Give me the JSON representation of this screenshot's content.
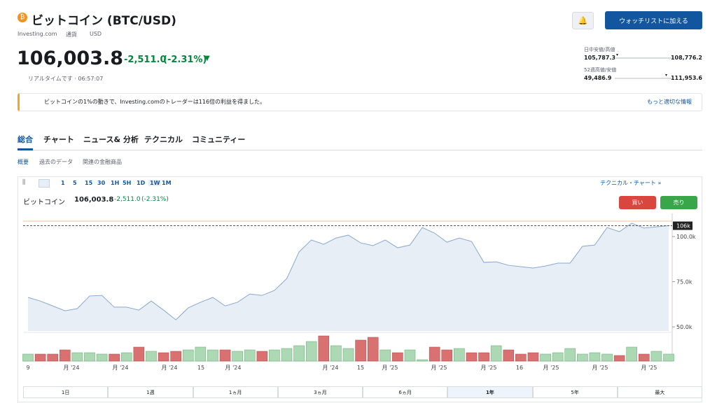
{
  "header": {
    "title": "ビットコイン (BTC/USD)",
    "source": "Investing.com",
    "currency_label": "通貨",
    "currency": "USD",
    "button": "ウォッチリストに加える"
  },
  "quote": {
    "price": "106,003.8",
    "change": "-2,511.0",
    "change_pct": "(-2.31%)",
    "status": "リアルタイムです · 06:57:07"
  },
  "ranges": [
    {
      "label": "日中安値/高値",
      "low": "105,787.3",
      "high": "108,776.2"
    },
    {
      "label": "52週高値/安値",
      "low": "49,486.9",
      "high": "111,953.6"
    }
  ],
  "banner": {
    "text": "ビットコインの1%の動きで、Investing.comのトレーダーは116倍の利益を得ました。",
    "link": "もっと適切な情報"
  },
  "tabs": [
    "総合",
    "チャート",
    "ニュース& 分析",
    "テクニカル",
    "コミュニティー"
  ],
  "subtabs": [
    "概要",
    "過去のデータ",
    "関連の金融商品"
  ],
  "chart_toolbar": {
    "intervals": [
      "1",
      "5",
      "15",
      "30",
      "1H",
      "5H",
      "1D",
      "1W",
      "1M"
    ],
    "link": "テクニカル・チャート »"
  },
  "chart_legend": {
    "name": "ビットコイン",
    "price": "106,003.8",
    "change": "-2,511.0",
    "change_pct": "(-2.31%)"
  },
  "trade_buttons": [
    "買い",
    "売り"
  ],
  "chart_data": {
    "type": "area",
    "color": "#86a9d1",
    "values": [
      66300,
      64300,
      61600,
      58900,
      60100,
      67100,
      67400,
      60900,
      60900,
      59300,
      64300,
      59300,
      53900,
      60500,
      63600,
      66300,
      61600,
      63600,
      68200,
      67400,
      70200,
      76700,
      91500,
      98100,
      95700,
      99200,
      100800,
      96500,
      95000,
      98100,
      93800,
      95300,
      105000,
      101900,
      96900,
      99200,
      97300,
      85700,
      86000,
      84100,
      83300,
      82600,
      83700,
      85300,
      85300,
      94600,
      95300,
      105000,
      102700,
      107400,
      104700,
      105400,
      106000
    ],
    "ylim": [
      47700,
      109700
    ],
    "yticks": [
      {
        "value": 50000,
        "label": "50.0k"
      },
      {
        "value": 75000,
        "label": "75.0k"
      },
      {
        "value": 100000,
        "label": "100.0k"
      }
    ],
    "last": {
      "value": 106003.8,
      "label": "106k"
    },
    "x_labels": [
      "9",
      "月 '24",
      "月 '24",
      "月 '24",
      "15",
      "月 '24",
      "月 '24",
      "15",
      "月 '25",
      "月 '25",
      "月 '25",
      "16",
      "月 '25",
      "月 '25",
      "月 '25"
    ],
    "volume": [
      10,
      10,
      10,
      16,
      12,
      12,
      10,
      10,
      12,
      20,
      14,
      12,
      14,
      16,
      20,
      16,
      16,
      14,
      16,
      14,
      16,
      18,
      22,
      28,
      36,
      22,
      18,
      30,
      34,
      16,
      12,
      16,
      2,
      20,
      16,
      18,
      12,
      12,
      22,
      16,
      10,
      12,
      10,
      12,
      18,
      10,
      12,
      10,
      8,
      20,
      10,
      14,
      10
    ],
    "volume_lim": [
      0,
      40
    ],
    "watermark": "Investing.com"
  },
  "range_buttons": [
    "1日",
    "1週",
    "1ヵ月",
    "3ヵ月",
    "6ヵ月",
    "1年",
    "5年",
    "最大"
  ],
  "selected_range": 5
}
